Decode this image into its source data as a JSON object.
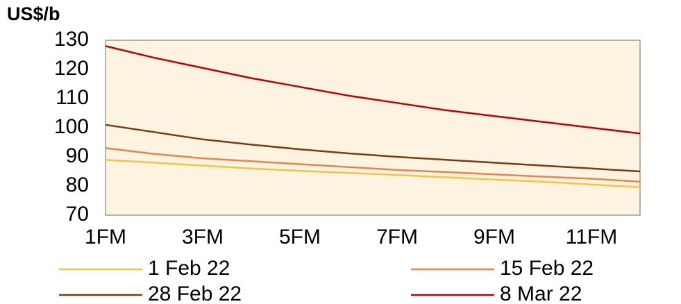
{
  "chart_data": {
    "type": "line",
    "title": "US$/b",
    "categories": [
      "1FM",
      null,
      "3FM",
      null,
      "5FM",
      null,
      "7FM",
      null,
      "9FM",
      null,
      "11FM",
      null
    ],
    "series": [
      {
        "name": "1 Feb 22",
        "color": "#f5c242",
        "values": [
          89,
          88,
          87,
          86,
          85.2,
          84.5,
          83.8,
          83,
          82.2,
          81.5,
          80.5,
          79.6
        ]
      },
      {
        "name": "15 Feb 22",
        "color": "#e8834a",
        "values": [
          93,
          91,
          89.5,
          88.5,
          87.5,
          86.5,
          85.5,
          84.8,
          84,
          83.2,
          82.5,
          81.5
        ]
      },
      {
        "name": "28 Feb 22",
        "color": "#7a3b10",
        "values": [
          101,
          98.5,
          96,
          94.2,
          92.6,
          91.2,
          90,
          89,
          88,
          87,
          86,
          85
        ]
      },
      {
        "name": "8 Mar 22",
        "color": "#c00000",
        "values": [
          128,
          124,
          120.5,
          117,
          114,
          111,
          108.5,
          106,
          104,
          102,
          100,
          98
        ]
      }
    ],
    "ylim": [
      70,
      130
    ],
    "yticks": [
      70,
      80,
      90,
      100,
      110,
      120,
      130
    ],
    "grid": false
  }
}
